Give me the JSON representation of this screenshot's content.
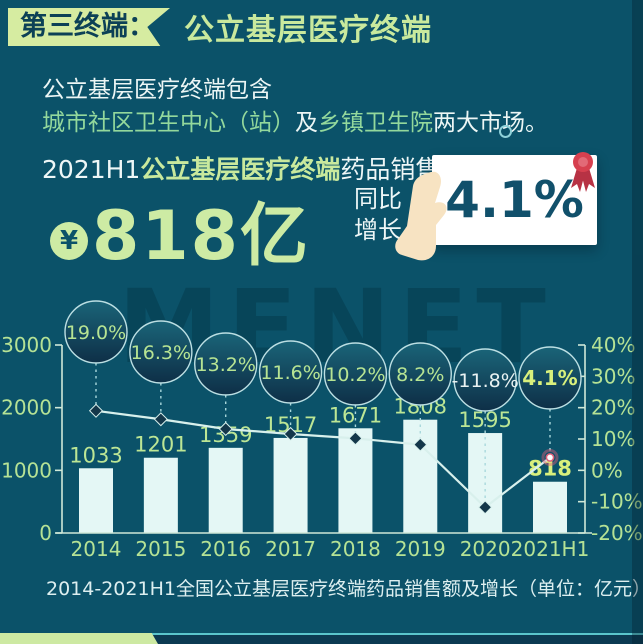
{
  "header": {
    "badge": "第三终端：",
    "title": "公立基层医疗终端"
  },
  "intro": {
    "line1": "公立基层医疗终端包含",
    "green1": "城市社区卫生中心（站）",
    "mid": "及",
    "green2": "乡镇卫生院",
    "end": "两大市场。"
  },
  "sales": {
    "prefix": "2021H1",
    "term": "公立基层医疗终端",
    "suffix": "药品销售额达",
    "currency": "¥",
    "amount": "818亿",
    "growth_line1": "同比",
    "growth_line2": "增长",
    "growth_value": "4.1%"
  },
  "watermark": "MENET",
  "colors": {
    "background": "#0b5269",
    "badge_green": "#d6eca1",
    "title_green": "#c9e99d",
    "mint": "#93d89c",
    "bar_fill": "#e4f7f5",
    "axis_text": "#b5e295",
    "axis_line": "#cfe8d8",
    "line": "#d8f0ec",
    "marker_fill": "#14374a",
    "dashed": "#a9d8dc",
    "circle_stroke": "#bcdfe3",
    "circle_text": "#b7e493",
    "circle_text_neg": "#e9f2f2",
    "highlight_green": "#d9f07c",
    "bar_label": "#bce695",
    "last_point_red": "#e0607a",
    "ribbon_red": "#d6404f",
    "card_text": "#11506b",
    "hand": "#f7e3c2"
  },
  "chart_data": {
    "type": "bar",
    "subtype": "bar+line combo",
    "title": "2014-2021H1全国公立基层医疗终端药品销售额及增长（单位：亿元）",
    "categories": [
      "2014",
      "2015",
      "2016",
      "2017",
      "2018",
      "2019",
      "2020",
      "2021H1"
    ],
    "series": [
      {
        "name": "药品销售额（亿元）",
        "type": "bar",
        "values": [
          1033,
          1201,
          1359,
          1517,
          1671,
          1808,
          1595,
          818
        ]
      },
      {
        "name": "同比增长（%）",
        "type": "line",
        "values": [
          19.0,
          16.3,
          13.2,
          11.6,
          10.2,
          8.2,
          -11.8,
          4.1
        ]
      }
    ],
    "left_axis": {
      "ticks": [
        0,
        1000,
        2000,
        3000
      ],
      "range": [
        0,
        3000
      ]
    },
    "right_axis": {
      "ticks": [
        40,
        30,
        20,
        10,
        0,
        -10,
        -20
      ],
      "unit": "%",
      "range": [
        -20,
        40
      ]
    },
    "grid": false,
    "legend": false,
    "highlight_last_point": true
  }
}
